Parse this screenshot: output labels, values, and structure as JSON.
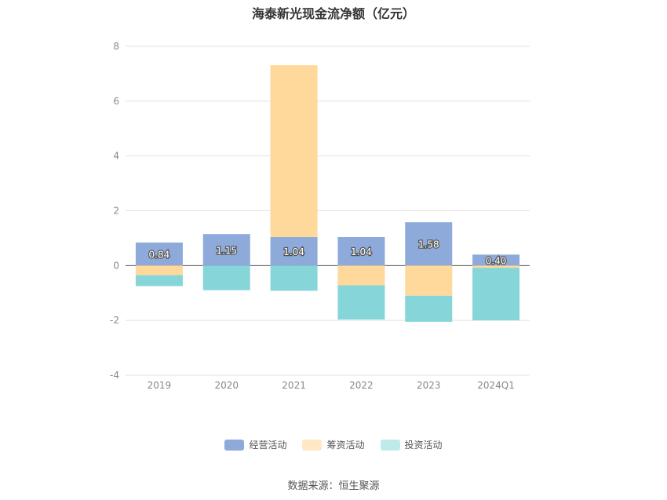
{
  "chart_data": {
    "type": "bar",
    "stacked": true,
    "title": "海泰新光现金流净额（亿元）",
    "categories": [
      "2019",
      "2020",
      "2021",
      "2022",
      "2023",
      "2024Q1"
    ],
    "series": [
      {
        "name": "经营活动",
        "color": "#8eaadb",
        "values": [
          0.84,
          1.15,
          1.04,
          1.04,
          1.58,
          0.4
        ],
        "labels": [
          "0.84",
          "1.15",
          "1.04",
          "1.04",
          "1.58",
          "0.40"
        ]
      },
      {
        "name": "筹资活动",
        "color": "#ffd89b",
        "values": [
          -0.35,
          0.0,
          6.27,
          -0.72,
          -1.1,
          -0.08
        ]
      },
      {
        "name": "投资活动",
        "color": "#86d6d9",
        "values": [
          -0.4,
          -0.9,
          -0.92,
          -1.25,
          -0.95,
          -1.92
        ]
      }
    ],
    "ylim": [
      -4,
      8
    ],
    "yticks": [
      -4,
      -2,
      0,
      2,
      4,
      6,
      8
    ],
    "grid": true,
    "legend_position": "bottom"
  },
  "source_text": "数据来源：恒生聚源"
}
